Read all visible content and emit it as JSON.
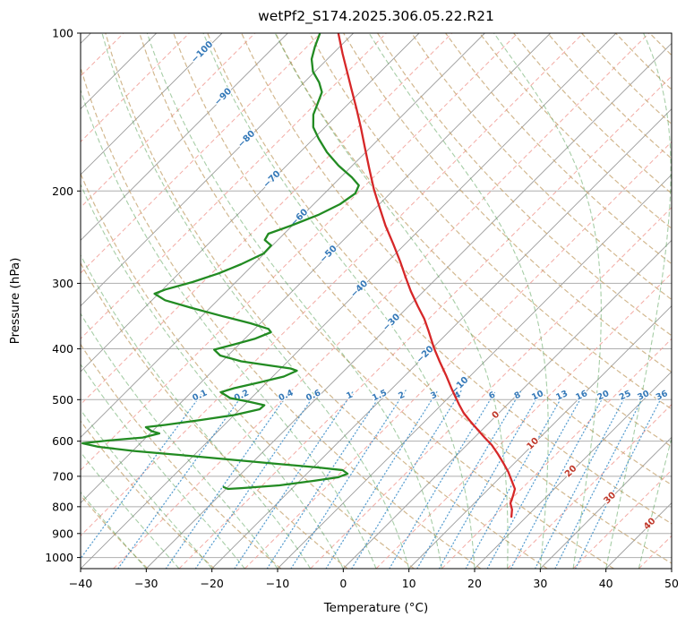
{
  "chart_data": {
    "type": "line",
    "subtype": "skew-t-log-p",
    "title": "wetPf2_S174.2025.306.05.22.R21",
    "xlabel": "Temperature (°C)",
    "ylabel": "Pressure (hPa)",
    "xlim": [
      -40,
      50
    ],
    "p_lim": [
      100,
      1050
    ],
    "skew": 34.68,
    "x_ticks": [
      -40,
      -30,
      -20,
      -10,
      0,
      10,
      20,
      30,
      40,
      50
    ],
    "y_ticks": [
      100,
      200,
      300,
      400,
      500,
      600,
      700,
      800,
      900,
      1000
    ],
    "grid": true,
    "legend": "none",
    "colors": {
      "grid": "#aeaeae",
      "isotherm": "#9b9b9b",
      "isotherm_minor": "#f2a29b",
      "dry_adiabat": "#c3a06a",
      "moist_adiabat": "#4f9d4f",
      "mixing_ratio": "#3f8fc9",
      "label_negative": "#3579b8",
      "label_positive": "#c0392b",
      "temperature": "#d62728",
      "dewpoint": "#228b22",
      "spine": "#000000"
    },
    "isotherms": {
      "major_step": 10,
      "minor_step": 10,
      "minor_offset": 5,
      "label_values": [
        -100,
        -90,
        -80,
        -70,
        -60,
        -50,
        -40,
        -30,
        -20,
        -10,
        0,
        10,
        20,
        30,
        40
      ],
      "label_theta": 327
    },
    "dry_adiabats": {
      "theta_start": 230,
      "theta_end": 480,
      "step": 10
    },
    "moist_adiabats": {
      "t_start": -30,
      "t_end": 45,
      "step": 5
    },
    "mixing_ratio": {
      "values": [
        0.1,
        0.2,
        0.4,
        0.6,
        1,
        1.5,
        2,
        3,
        4,
        6,
        8,
        10,
        13,
        16,
        20,
        25,
        30,
        36
      ],
      "label_pressure": 490,
      "top_pressure": 480
    },
    "series": [
      {
        "name": "temperature",
        "units": [
          "hPa",
          "degC"
        ],
        "points": [
          [
            100.0,
            -82.3
          ],
          [
            109.5,
            -78.5
          ],
          [
            118.4,
            -75.1
          ],
          [
            128.1,
            -71.7
          ],
          [
            139.1,
            -68.1
          ],
          [
            151.7,
            -64.4
          ],
          [
            165.4,
            -60.8
          ],
          [
            181.1,
            -57.0
          ],
          [
            199.0,
            -53.0
          ],
          [
            215.3,
            -49.4
          ],
          [
            232.9,
            -45.8
          ],
          [
            252.0,
            -41.9
          ],
          [
            272.6,
            -38.1
          ],
          [
            292.6,
            -34.8
          ],
          [
            310.3,
            -32.0
          ],
          [
            331.8,
            -28.6
          ],
          [
            350.6,
            -25.7
          ],
          [
            369.0,
            -23.3
          ],
          [
            399.2,
            -19.7
          ],
          [
            423.4,
            -16.8
          ],
          [
            449.2,
            -13.8
          ],
          [
            474.6,
            -11.1
          ],
          [
            495.6,
            -8.9
          ],
          [
            511.4,
            -7.3
          ],
          [
            529.8,
            -5.4
          ],
          [
            548.9,
            -3.2
          ],
          [
            568.6,
            -0.9
          ],
          [
            589.1,
            1.4
          ],
          [
            610.4,
            3.8
          ],
          [
            634.8,
            6.1
          ],
          [
            660.4,
            8.3
          ],
          [
            686.8,
            10.4
          ],
          [
            714.3,
            12.3
          ],
          [
            740.1,
            14.0
          ],
          [
            763.7,
            14.8
          ],
          [
            788.1,
            15.5
          ],
          [
            810.1,
            16.7
          ],
          [
            836.1,
            17.7
          ]
        ]
      },
      {
        "name": "dewpoint",
        "units": [
          "hPa",
          "degC"
        ],
        "points": [
          [
            100.4,
            -85.0
          ],
          [
            106.1,
            -83.8
          ],
          [
            112.1,
            -82.4
          ],
          [
            118.4,
            -80.3
          ],
          [
            124.2,
            -77.7
          ],
          [
            129.6,
            -75.8
          ],
          [
            136.4,
            -74.7
          ],
          [
            143.0,
            -73.7
          ],
          [
            151.1,
            -71.8
          ],
          [
            159.0,
            -69.2
          ],
          [
            168.7,
            -65.9
          ],
          [
            178.9,
            -62.1
          ],
          [
            188.3,
            -58.3
          ],
          [
            195.1,
            -56.0
          ],
          [
            202.2,
            -55.3
          ],
          [
            211.9,
            -56.0
          ],
          [
            222.2,
            -57.7
          ],
          [
            232.9,
            -60.2
          ],
          [
            241.3,
            -62.4
          ],
          [
            248.0,
            -62.0
          ],
          [
            254.0,
            -60.2
          ],
          [
            263.1,
            -60.1
          ],
          [
            275.8,
            -61.9
          ],
          [
            287.1,
            -63.9
          ],
          [
            298.4,
            -66.6
          ],
          [
            308.2,
            -69.6
          ],
          [
            314.0,
            -70.6
          ],
          [
            323.1,
            -68.0
          ],
          [
            334.4,
            -62.7
          ],
          [
            346.8,
            -56.7
          ],
          [
            357.5,
            -51.5
          ],
          [
            366.5,
            -47.9
          ],
          [
            371.9,
            -47.0
          ],
          [
            382.8,
            -48.5
          ],
          [
            392.9,
            -50.9
          ],
          [
            401.5,
            -53.0
          ],
          [
            411.9,
            -51.2
          ],
          [
            422.6,
            -47.1
          ],
          [
            430.1,
            -42.3
          ],
          [
            436.1,
            -38.5
          ],
          [
            440.4,
            -37.2
          ],
          [
            451.8,
            -38.3
          ],
          [
            463.5,
            -41.1
          ],
          [
            475.5,
            -44.1
          ],
          [
            484.0,
            -45.5
          ],
          [
            496.5,
            -43.2
          ],
          [
            505.3,
            -39.5
          ],
          [
            512.4,
            -36.9
          ],
          [
            521.5,
            -37.0
          ],
          [
            535.0,
            -40.0
          ],
          [
            546.7,
            -44.3
          ],
          [
            558.7,
            -49.0
          ],
          [
            564.2,
            -51.6
          ],
          [
            574.3,
            -50.1
          ],
          [
            579.9,
            -48.6
          ],
          [
            590.4,
            -50.5
          ],
          [
            598.5,
            -55.4
          ],
          [
            605.6,
            -58.8
          ],
          [
            615.2,
            -55.8
          ],
          [
            626.3,
            -49.8
          ],
          [
            637.3,
            -42.3
          ],
          [
            649.9,
            -34.2
          ],
          [
            662.9,
            -26.0
          ],
          [
            673.4,
            -19.3
          ],
          [
            681.3,
            -15.1
          ],
          [
            692.1,
            -13.8
          ],
          [
            703.2,
            -14.7
          ],
          [
            714.3,
            -17.9
          ],
          [
            728.5,
            -22.4
          ],
          [
            737.2,
            -27.8
          ],
          [
            740.1,
            -29.7
          ],
          [
            734.3,
            -30.6
          ]
        ]
      }
    ]
  }
}
